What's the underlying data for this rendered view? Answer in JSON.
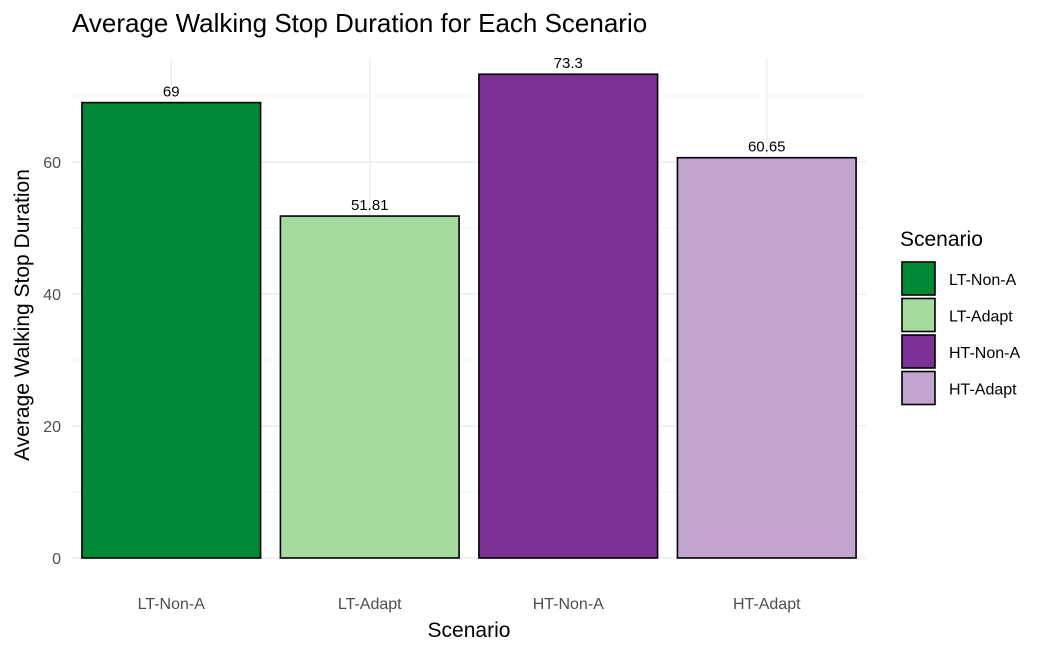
{
  "chart_data": {
    "type": "bar",
    "title": "Average Walking Stop Duration for Each Scenario",
    "xlabel": "Scenario",
    "ylabel": "Average Walking Stop Duration",
    "categories": [
      "LT-Non-A",
      "LT-Adapt",
      "HT-Non-A",
      "HT-Adapt"
    ],
    "values": [
      69,
      51.81,
      73.3,
      60.65
    ],
    "data_labels": [
      "69",
      "51.81",
      "73.3",
      "60.65"
    ],
    "colors": [
      "#008837",
      "#a6dba0",
      "#7b3294",
      "#c2a5cf"
    ],
    "ylim": [
      0,
      75
    ],
    "yticks": [
      0,
      20,
      40,
      60
    ],
    "grid": true,
    "legend": {
      "title": "Scenario",
      "position": "right",
      "entries": [
        "LT-Non-A",
        "LT-Adapt",
        "HT-Non-A",
        "HT-Adapt"
      ]
    }
  }
}
